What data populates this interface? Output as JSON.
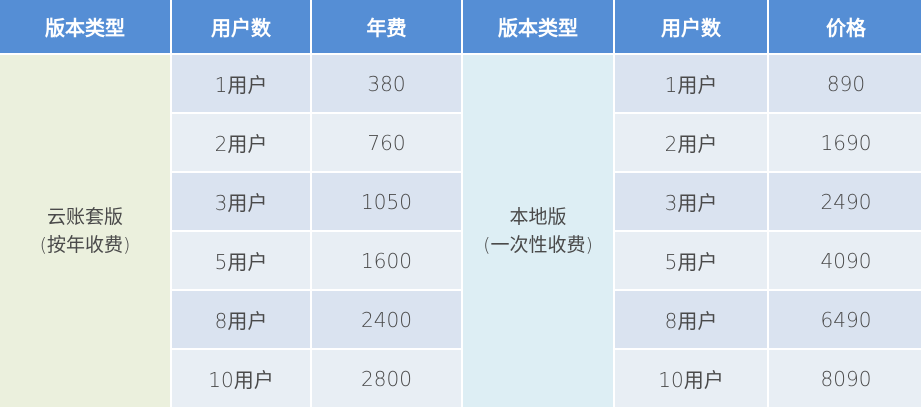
{
  "headers": [
    "版本类型",
    "用户数",
    "年费",
    "版本类型",
    "用户数",
    "价格"
  ],
  "cloud": {
    "name": "云账套版",
    "note": "(按年收费)"
  },
  "local": {
    "name": "本地版",
    "note": "(一次性收费)"
  },
  "rows": [
    {
      "users": "1用户",
      "annual": "380",
      "users2": "1用户",
      "price": "890"
    },
    {
      "users": "2用户",
      "annual": "760",
      "users2": "2用户",
      "price": "1690"
    },
    {
      "users": "3用户",
      "annual": "1050",
      "users2": "3用户",
      "price": "2490"
    },
    {
      "users": "5用户",
      "annual": "1600",
      "users2": "5用户",
      "price": "4090"
    },
    {
      "users": "8用户",
      "annual": "2400",
      "users2": "8用户",
      "price": "6490"
    },
    {
      "users": "10用户",
      "annual": "2800",
      "users2": "10用户",
      "price": "8090"
    }
  ],
  "colors": {
    "header": "#558ed5",
    "cloud": "#ebf0dd",
    "local": "#ddeef4",
    "row_odd": "#dae3f0",
    "row_even": "#e8eef4"
  }
}
